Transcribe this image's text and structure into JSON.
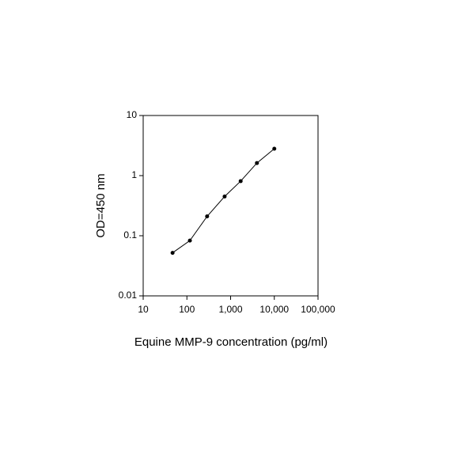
{
  "chart_data": {
    "type": "line",
    "x_label": "Equine MMP-9 concentration (pg/ml)",
    "y_label": "OD=450 nm",
    "x": [
      47,
      117,
      290,
      730,
      1700,
      4000,
      10000
    ],
    "series": [
      {
        "name": "OD",
        "color": "#000000",
        "values": [
          0.052,
          0.083,
          0.21,
          0.45,
          0.81,
          1.62,
          2.8
        ]
      }
    ],
    "xlim": [
      10,
      100000
    ],
    "ylim": [
      0.01,
      10
    ],
    "x_log": true,
    "y_log": true,
    "xticks": [
      10,
      100,
      {
        "value": 1000,
        "label": "1,000"
      },
      {
        "value": 10000,
        "label": "10,000"
      },
      {
        "value": 100000,
        "label": "100,000"
      }
    ],
    "yticks": [
      0.01,
      0.1,
      1,
      10
    ]
  }
}
